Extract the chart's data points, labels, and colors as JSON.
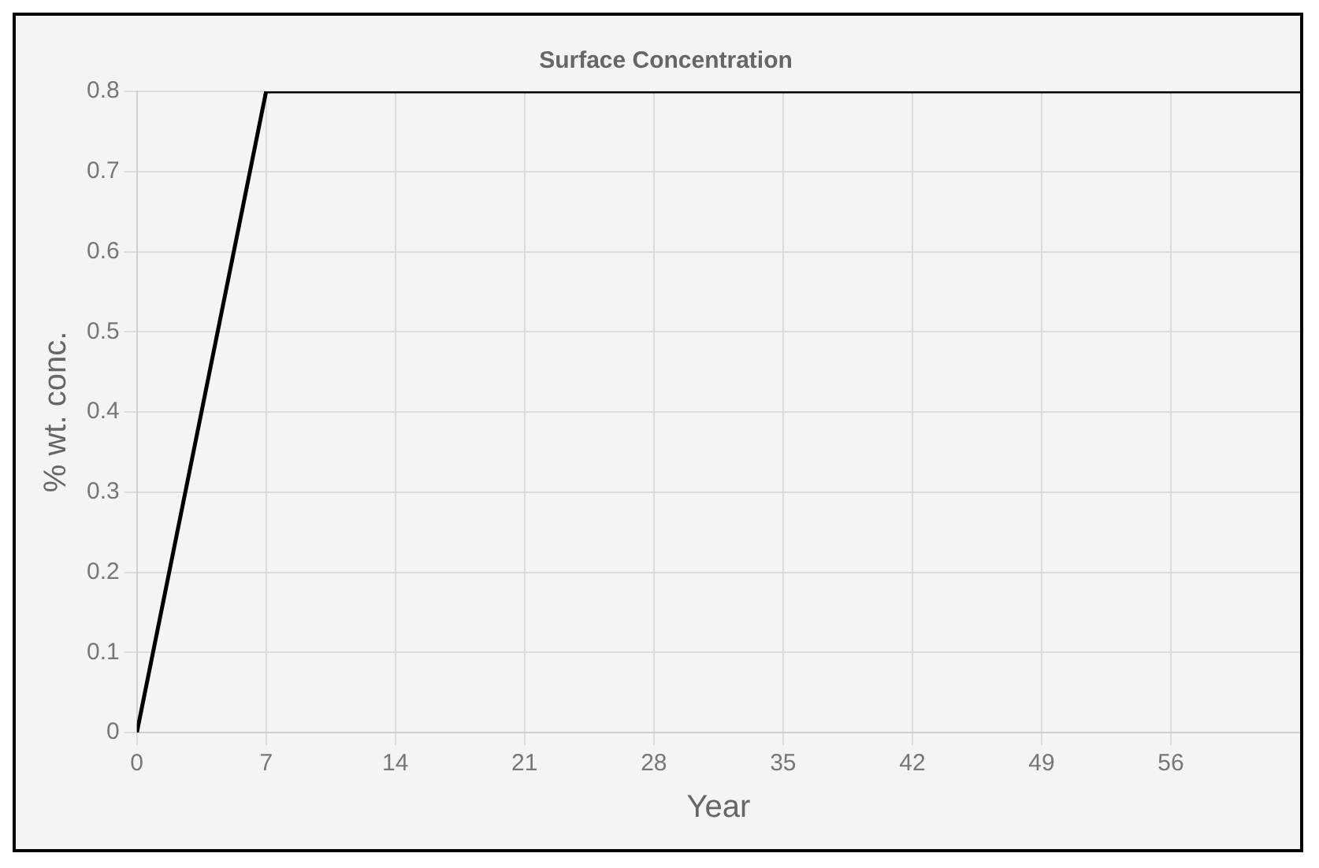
{
  "chart_data": {
    "type": "line",
    "title": "Surface Concentration",
    "xlabel": "Year",
    "ylabel": "% wt. conc.",
    "x": [
      0,
      7,
      63
    ],
    "series": [
      {
        "color": "#000000",
        "values": [
          0,
          0.8,
          0.8
        ]
      }
    ],
    "xlim": [
      0,
      63
    ],
    "xticks": [
      0,
      7,
      14,
      21,
      28,
      35,
      42,
      49,
      56
    ],
    "ylim": [
      0,
      0.8
    ],
    "yticks": [
      0,
      0.1,
      0.2,
      0.3,
      0.4,
      0.5,
      0.6,
      0.7,
      0.8
    ],
    "grid": true,
    "legend": false,
    "marker": "none",
    "line_style": "solid"
  }
}
